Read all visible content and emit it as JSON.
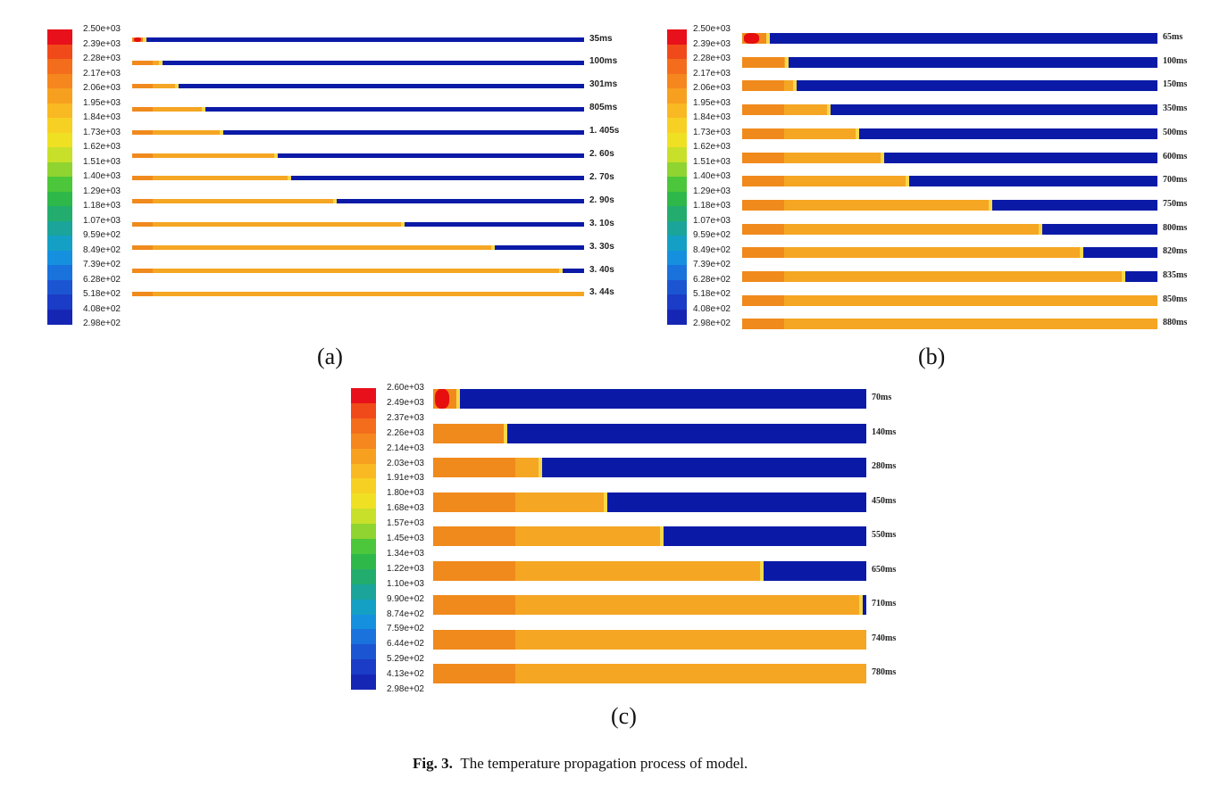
{
  "figure": {
    "caption_label": "Fig. 3.",
    "caption_text": "The temperature propagation process of model.",
    "colors": {
      "hot": "#e60e0e",
      "orange": "#f08a1c",
      "amber": "#f5a623",
      "cold": "#0a1aa6",
      "edge": "#f6d84a"
    },
    "panels": [
      {
        "id": "a",
        "label": "(a)",
        "colorbar_ticks": [
          "2.50e+03",
          "2.39e+03",
          "2.28e+03",
          "2.17e+03",
          "2.06e+03",
          "1.95e+03",
          "1.84e+03",
          "1.73e+03",
          "1.62e+03",
          "1.51e+03",
          "1.40e+03",
          "1.29e+03",
          "1.18e+03",
          "1.07e+03",
          "9.59e+02",
          "8.49e+02",
          "7.39e+02",
          "6.28e+02",
          "5.18e+02",
          "4.08e+02",
          "2.98e+02"
        ],
        "times": [
          "35ms",
          "100ms",
          "301ms",
          "805ms",
          "1. 405s",
          "2. 60s",
          "2. 70s",
          "2. 90s",
          "3. 10s",
          "3. 30s",
          "3. 40s",
          "3. 44s"
        ],
        "front": [
          0.03,
          0.065,
          0.1,
          0.16,
          0.2,
          0.32,
          0.35,
          0.45,
          0.6,
          0.8,
          0.95,
          1.0
        ]
      },
      {
        "id": "b",
        "label": "(b)",
        "colorbar_ticks": [
          "2.50e+03",
          "2.39e+03",
          "2.28e+03",
          "2.17e+03",
          "2.06e+03",
          "1.95e+03",
          "1.84e+03",
          "1.73e+03",
          "1.62e+03",
          "1.51e+03",
          "1.40e+03",
          "1.29e+03",
          "1.18e+03",
          "1.07e+03",
          "9.59e+02",
          "8.49e+02",
          "7.39e+02",
          "6.28e+02",
          "5.18e+02",
          "4.08e+02",
          "2.98e+02"
        ],
        "times": [
          "65ms",
          "100ms",
          "150ms",
          "350ms",
          "500ms",
          "600ms",
          "700ms",
          "750ms",
          "800ms",
          "820ms",
          "835ms",
          "850ms",
          "880ms"
        ],
        "front": [
          0.065,
          0.11,
          0.13,
          0.21,
          0.28,
          0.34,
          0.4,
          0.6,
          0.72,
          0.82,
          0.92,
          1.0,
          1.0
        ]
      },
      {
        "id": "c",
        "label": "(c)",
        "colorbar_ticks": [
          "2.60e+03",
          "2.49e+03",
          "2.37e+03",
          "2.26e+03",
          "2.14e+03",
          "2.03e+03",
          "1.91e+03",
          "1.80e+03",
          "1.68e+03",
          "1.57e+03",
          "1.45e+03",
          "1.34e+03",
          "1.22e+03",
          "1.10e+03",
          "9.90e+02",
          "8.74e+02",
          "7.59e+02",
          "6.44e+02",
          "5.29e+02",
          "4.13e+02",
          "2.98e+02"
        ],
        "times": [
          "70ms",
          "140ms",
          "280ms",
          "450ms",
          "550ms",
          "650ms",
          "710ms",
          "740ms",
          "780ms"
        ],
        "front": [
          0.06,
          0.17,
          0.25,
          0.4,
          0.53,
          0.76,
          0.99,
          1.0,
          1.0
        ]
      }
    ]
  }
}
